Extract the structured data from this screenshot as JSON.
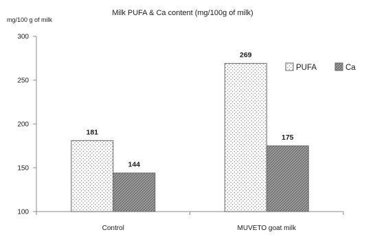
{
  "chart_data": {
    "type": "bar",
    "title": "Milk PUFA & Ca content (mg/100g of milk)",
    "ylabel": "mg/100 g of milk",
    "xlabel": "",
    "categories": [
      "Control",
      "MUVETO goat milk"
    ],
    "series": [
      {
        "name": "PUFA",
        "values": [
          181,
          269
        ],
        "pattern": "dots",
        "color": "#ffffff"
      },
      {
        "name": "Ca",
        "values": [
          144,
          175
        ],
        "pattern": "crosshatch",
        "color": "#9a9a9a"
      }
    ],
    "ylim": [
      100,
      300
    ],
    "yticks": [
      100,
      150,
      200,
      250,
      300
    ],
    "grid": false,
    "legend_position": "right",
    "data_labels": true
  }
}
